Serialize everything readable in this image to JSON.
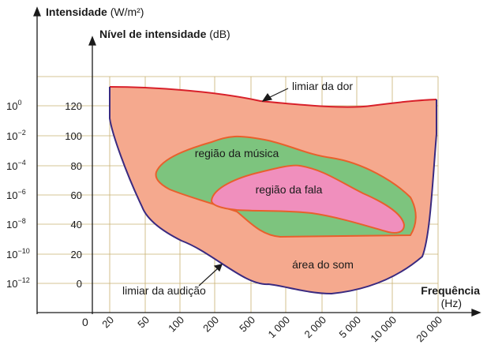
{
  "axes": {
    "outer_y_title_bold": "Intensidade",
    "outer_y_title_unit": "(W/m²)",
    "inner_y_title_bold": "Nível de intensidade",
    "inner_y_title_unit": "(dB)",
    "x_title": "Frequência",
    "x_unit": "(Hz)",
    "origin_label": "0"
  },
  "intensity_ticks": [
    {
      "base": "10",
      "exp": "0"
    },
    {
      "base": "10",
      "exp": "−2"
    },
    {
      "base": "10",
      "exp": "−4"
    },
    {
      "base": "10",
      "exp": "−6"
    },
    {
      "base": "10",
      "exp": "−8"
    },
    {
      "base": "10",
      "exp": "−10"
    },
    {
      "base": "10",
      "exp": "−12"
    }
  ],
  "db_ticks": [
    "120",
    "100",
    "80",
    "60",
    "40",
    "20",
    "0"
  ],
  "freq_ticks": [
    "20",
    "50",
    "100",
    "200",
    "500",
    "1 000",
    "2 000",
    "5 000",
    "10 000",
    "20 000"
  ],
  "regions": {
    "music": "região da música",
    "speech": "região da fala",
    "sound": "área do som"
  },
  "annotations": {
    "pain": "limiar da dor",
    "hearing": "limiar da audição"
  },
  "colors": {
    "sound_area": "#f5a98e",
    "music_area": "#7dc47e",
    "speech_area": "#f08fbd",
    "pain_line": "#d8202a",
    "hearing_line": "#3a2a80",
    "region_outline": "#e8602c",
    "grid": "#c8b070"
  }
}
